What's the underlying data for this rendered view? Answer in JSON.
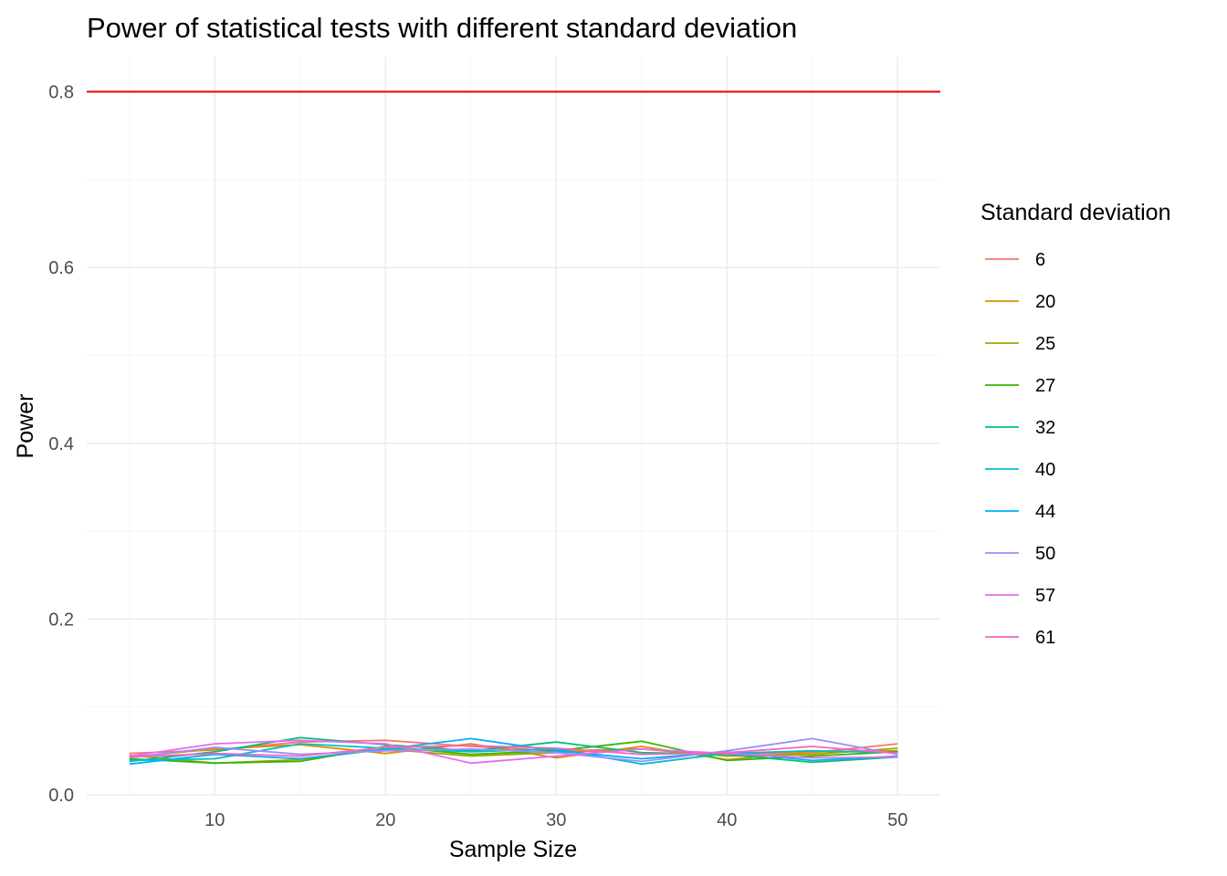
{
  "chart_data": {
    "type": "line",
    "title": "Power of statistical tests with different standard deviation",
    "xlabel": "Sample Size",
    "ylabel": "Power",
    "xlim": [
      2.5,
      52.5
    ],
    "ylim": [
      0,
      0.84
    ],
    "x_ticks": [
      10,
      20,
      30,
      40,
      50
    ],
    "y_ticks": [
      0.0,
      0.2,
      0.4,
      0.6,
      0.8
    ],
    "x_tick_labels": [
      "10",
      "20",
      "30",
      "40",
      "50"
    ],
    "y_tick_labels": [
      "0.0",
      "0.2",
      "0.4",
      "0.6",
      "0.8"
    ],
    "grid": true,
    "legend_position": "right",
    "legend_title": "Standard deviation",
    "reference_line": {
      "y": 0.8,
      "color": "#ee0000"
    },
    "x": [
      5,
      10,
      15,
      20,
      25,
      30,
      35,
      40,
      45,
      50
    ],
    "series": [
      {
        "name": "6",
        "color": "#F8766D",
        "values": [
          0.047,
          0.051,
          0.06,
          0.062,
          0.055,
          0.05,
          0.052,
          0.046,
          0.048,
          0.058
        ]
      },
      {
        "name": "20",
        "color": "#D89000",
        "values": [
          0.043,
          0.052,
          0.057,
          0.047,
          0.058,
          0.042,
          0.055,
          0.04,
          0.049,
          0.05
        ]
      },
      {
        "name": "25",
        "color": "#A3A500",
        "values": [
          0.045,
          0.036,
          0.04,
          0.052,
          0.044,
          0.048,
          0.052,
          0.044,
          0.046,
          0.053
        ]
      },
      {
        "name": "27",
        "color": "#39B600",
        "values": [
          0.041,
          0.036,
          0.038,
          0.055,
          0.046,
          0.05,
          0.061,
          0.039,
          0.044,
          0.049
        ]
      },
      {
        "name": "32",
        "color": "#00BF7D",
        "values": [
          0.038,
          0.049,
          0.065,
          0.057,
          0.05,
          0.06,
          0.048,
          0.046,
          0.037,
          0.043
        ]
      },
      {
        "name": "40",
        "color": "#00BFC4",
        "values": [
          0.039,
          0.041,
          0.058,
          0.053,
          0.049,
          0.052,
          0.035,
          0.047,
          0.05,
          0.048
        ]
      },
      {
        "name": "44",
        "color": "#00B0F6",
        "values": [
          0.035,
          0.046,
          0.041,
          0.052,
          0.064,
          0.05,
          0.041,
          0.049,
          0.039,
          0.044
        ]
      },
      {
        "name": "50",
        "color": "#9590FF",
        "values": [
          0.042,
          0.054,
          0.046,
          0.05,
          0.052,
          0.048,
          0.038,
          0.05,
          0.064,
          0.046
        ]
      },
      {
        "name": "57",
        "color": "#E76BF3",
        "values": [
          0.044,
          0.058,
          0.062,
          0.058,
          0.036,
          0.044,
          0.052,
          0.047,
          0.042,
          0.043
        ]
      },
      {
        "name": "61",
        "color": "#FF62BC",
        "values": [
          0.043,
          0.047,
          0.044,
          0.054,
          0.056,
          0.053,
          0.046,
          0.048,
          0.055,
          0.047
        ]
      }
    ]
  }
}
